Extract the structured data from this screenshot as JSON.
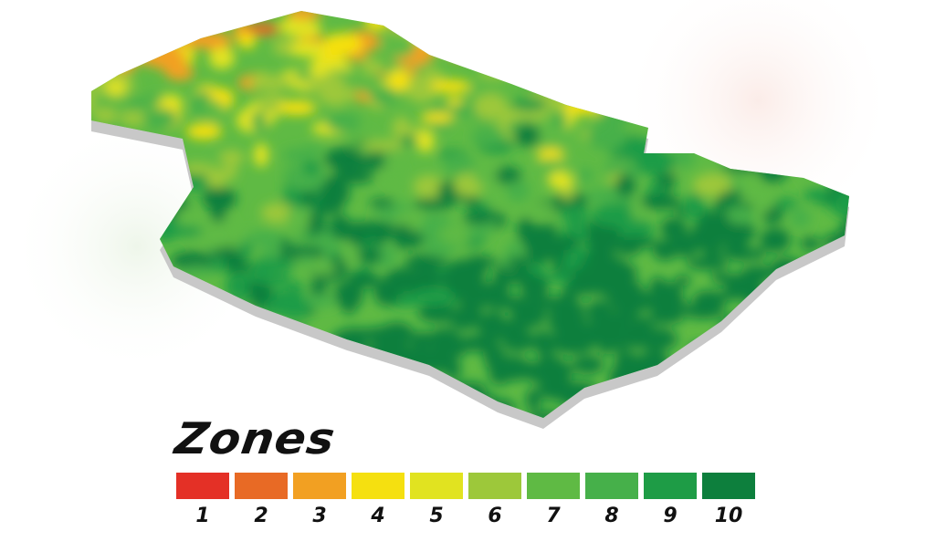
{
  "legend": {
    "title": "Zones",
    "zones": [
      {
        "label": "1",
        "color": "#e43026"
      },
      {
        "label": "2",
        "color": "#e86a25"
      },
      {
        "label": "3",
        "color": "#f2a022"
      },
      {
        "label": "4",
        "color": "#f5e010"
      },
      {
        "label": "5",
        "color": "#e1e320"
      },
      {
        "label": "6",
        "color": "#9dc83a"
      },
      {
        "label": "7",
        "color": "#5fba44"
      },
      {
        "label": "8",
        "color": "#46b04a"
      },
      {
        "label": "9",
        "color": "#1e9c46"
      },
      {
        "label": "10",
        "color": "#0d7f3d"
      }
    ]
  },
  "map": {
    "side_color": "#c8c8c8"
  }
}
